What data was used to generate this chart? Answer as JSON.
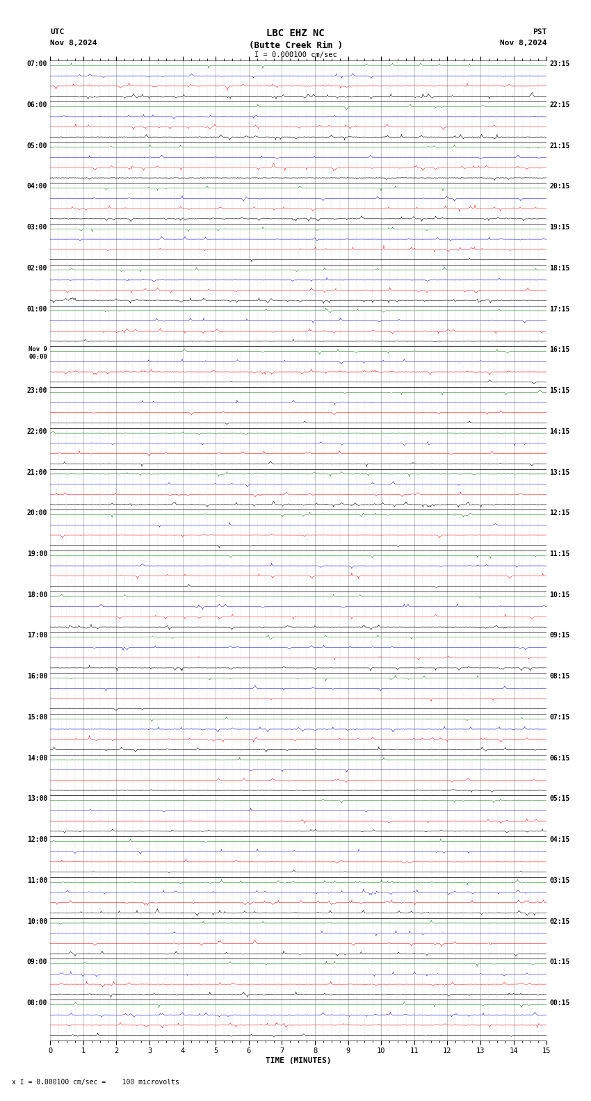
{
  "title_line1": "LBC EHZ NC",
  "title_line2": "(Butte Creek Rim )",
  "scale_label": "I = 0.000100 cm/sec",
  "utc_label": "UTC",
  "pst_label": "PST",
  "date_left": "Nov 8,2024",
  "date_right": "Nov 8,2024",
  "xlabel": "TIME (MINUTES)",
  "footer": "x I = 0.000100 cm/sec =    100 microvolts",
  "bg_color": "#ffffff",
  "grid_color": "#aaaaaa",
  "trace_black": "#000000",
  "trace_red": "#ff0000",
  "trace_blue": "#0000dd",
  "trace_green": "#007700",
  "num_hour_blocks": 24,
  "utc_labels": [
    "08:00",
    "09:00",
    "10:00",
    "11:00",
    "12:00",
    "13:00",
    "14:00",
    "15:00",
    "16:00",
    "17:00",
    "18:00",
    "19:00",
    "20:00",
    "21:00",
    "22:00",
    "23:00",
    "00:00",
    "01:00",
    "02:00",
    "03:00",
    "04:00",
    "05:00",
    "06:00",
    "07:00"
  ],
  "utc_prefix_nov9": "Nov 9",
  "pst_labels": [
    "00:15",
    "01:15",
    "02:15",
    "03:15",
    "04:15",
    "05:15",
    "06:15",
    "07:15",
    "08:15",
    "09:15",
    "10:15",
    "11:15",
    "12:15",
    "13:15",
    "14:15",
    "15:15",
    "16:15",
    "17:15",
    "18:15",
    "19:15",
    "20:15",
    "21:15",
    "22:15",
    "23:15"
  ],
  "nov9_block_index": 16
}
